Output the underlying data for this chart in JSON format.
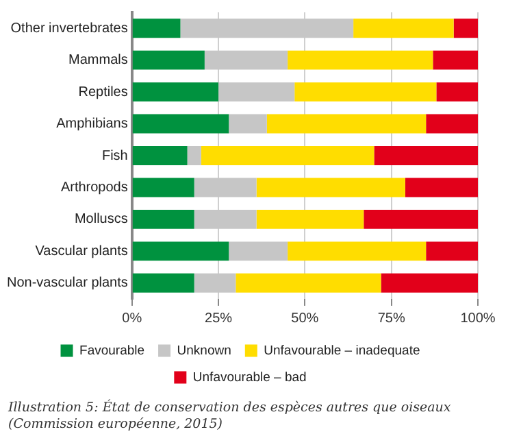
{
  "chart_data": {
    "type": "bar",
    "orientation": "horizontal",
    "stacked": true,
    "categories": [
      "Other invertebrates",
      "Mammals",
      "Reptiles",
      "Amphibians",
      "Fish",
      "Arthropods",
      "Molluscs",
      "Vascular plants",
      "Non-vascular plants"
    ],
    "series": [
      {
        "name": "Favourable",
        "color": "#00923f",
        "values": [
          14,
          21,
          25,
          28,
          16,
          18,
          18,
          28,
          18
        ]
      },
      {
        "name": "Unknown",
        "color": "#c6c6c6",
        "values": [
          50,
          24,
          22,
          11,
          4,
          18,
          18,
          17,
          12
        ]
      },
      {
        "name": "Unfavourable – inadequate",
        "color": "#ffdd00",
        "values": [
          29,
          42,
          41,
          46,
          50,
          43,
          31,
          40,
          42
        ]
      },
      {
        "name": "Unfavourable – bad",
        "color": "#e2001a",
        "values": [
          7,
          13,
          12,
          15,
          30,
          21,
          33,
          15,
          28
        ]
      }
    ],
    "xlim": [
      0,
      100
    ],
    "xticks": [
      {
        "value": 0,
        "label": "0%"
      },
      {
        "value": 25,
        "label": "25%"
      },
      {
        "value": 50,
        "label": "50%"
      },
      {
        "value": 75,
        "label": "75%"
      },
      {
        "value": 100,
        "label": "100%"
      }
    ],
    "grid": "x",
    "legend": "bottom",
    "annotations": [
      "Illustration 5: État de conservation des espèces autres que oiseaux (Commission européenne, 2015)"
    ]
  }
}
